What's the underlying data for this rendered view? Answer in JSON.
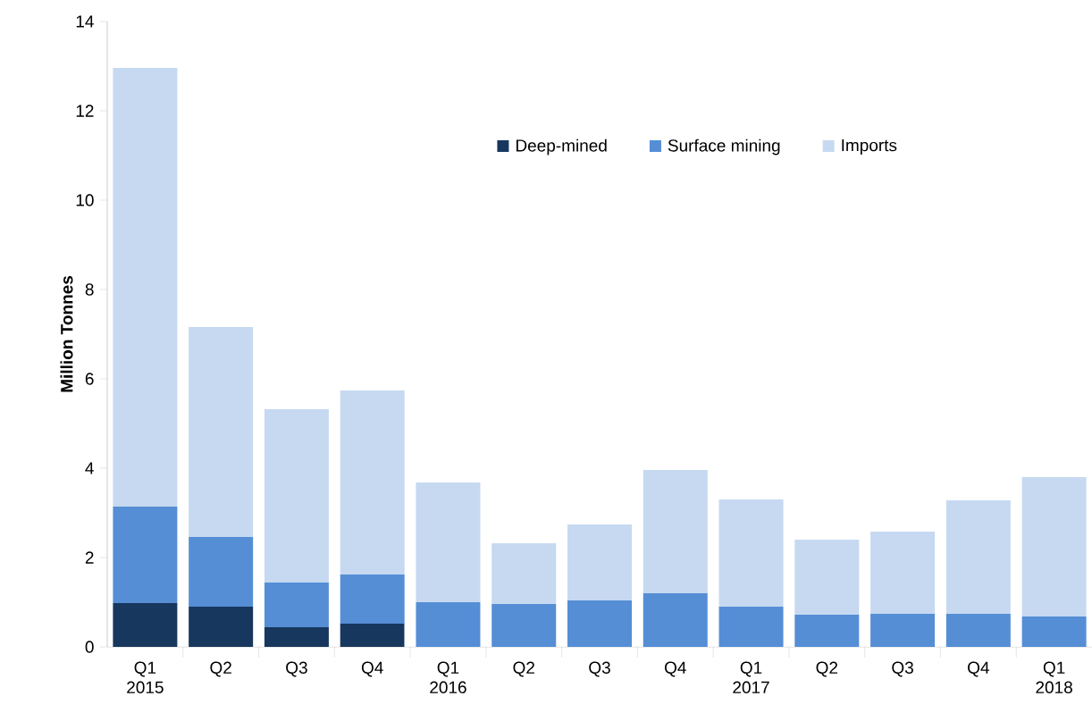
{
  "chart_data": {
    "type": "bar",
    "stacked": true,
    "ylabel": "Million Tonnes",
    "categories": [
      "Q1 2015",
      "Q2",
      "Q3",
      "Q4",
      "Q1 2016",
      "Q2",
      "Q3",
      "Q4",
      "Q1 2017",
      "Q2",
      "Q3",
      "Q4",
      "Q1 2018"
    ],
    "series": [
      {
        "name": "Deep-mined",
        "color": "#17375e",
        "values": [
          0.98,
          0.9,
          0.44,
          0.52,
          null,
          null,
          null,
          null,
          null,
          null,
          null,
          null,
          null
        ]
      },
      {
        "name": "Surface mining",
        "color": "#558ed5",
        "values": [
          2.16,
          1.56,
          1.0,
          1.1,
          1.0,
          0.96,
          1.04,
          1.2,
          0.9,
          0.72,
          0.74,
          0.74,
          0.68
        ]
      },
      {
        "name": "Imports",
        "color": "#c6d9f1",
        "values": [
          9.82,
          4.7,
          3.88,
          4.12,
          2.68,
          1.36,
          1.7,
          2.76,
          2.4,
          1.68,
          1.84,
          2.54,
          3.12
        ]
      }
    ],
    "ylim": [
      0,
      14
    ],
    "yticks": [
      0,
      2,
      4,
      6,
      8,
      10,
      12,
      14
    ],
    "grid": false,
    "legend": "top"
  }
}
